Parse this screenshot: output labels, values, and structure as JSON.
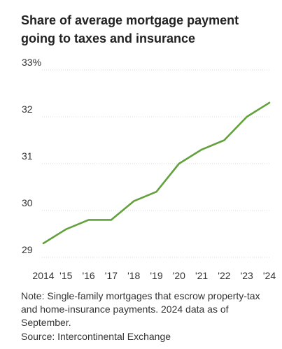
{
  "chart_data": {
    "type": "line",
    "title": "Share of average mortgage payment going to taxes and insurance",
    "x": [
      "2014",
      "'15",
      "'16",
      "'17",
      "'18",
      "'19",
      "'20",
      "'21",
      "'22",
      "'23",
      "'24"
    ],
    "series": [
      {
        "values": [
          29.3,
          29.6,
          29.8,
          29.8,
          30.2,
          30.4,
          31.0,
          31.3,
          31.5,
          32.0,
          32.3
        ]
      }
    ],
    "yticks": [
      {
        "value": 33,
        "label": "33%"
      },
      {
        "value": 32,
        "label": "32"
      },
      {
        "value": 31,
        "label": "31"
      },
      {
        "value": 30,
        "label": "30"
      },
      {
        "value": 29,
        "label": "29"
      }
    ],
    "ylim": [
      29,
      33
    ],
    "grid": true,
    "line_color": "#63a13c"
  },
  "note": "Note: Single-family mortgages that escrow property-tax and home-insurance payments. 2024 data as of September.",
  "source": "Source: Intercontinental Exchange"
}
